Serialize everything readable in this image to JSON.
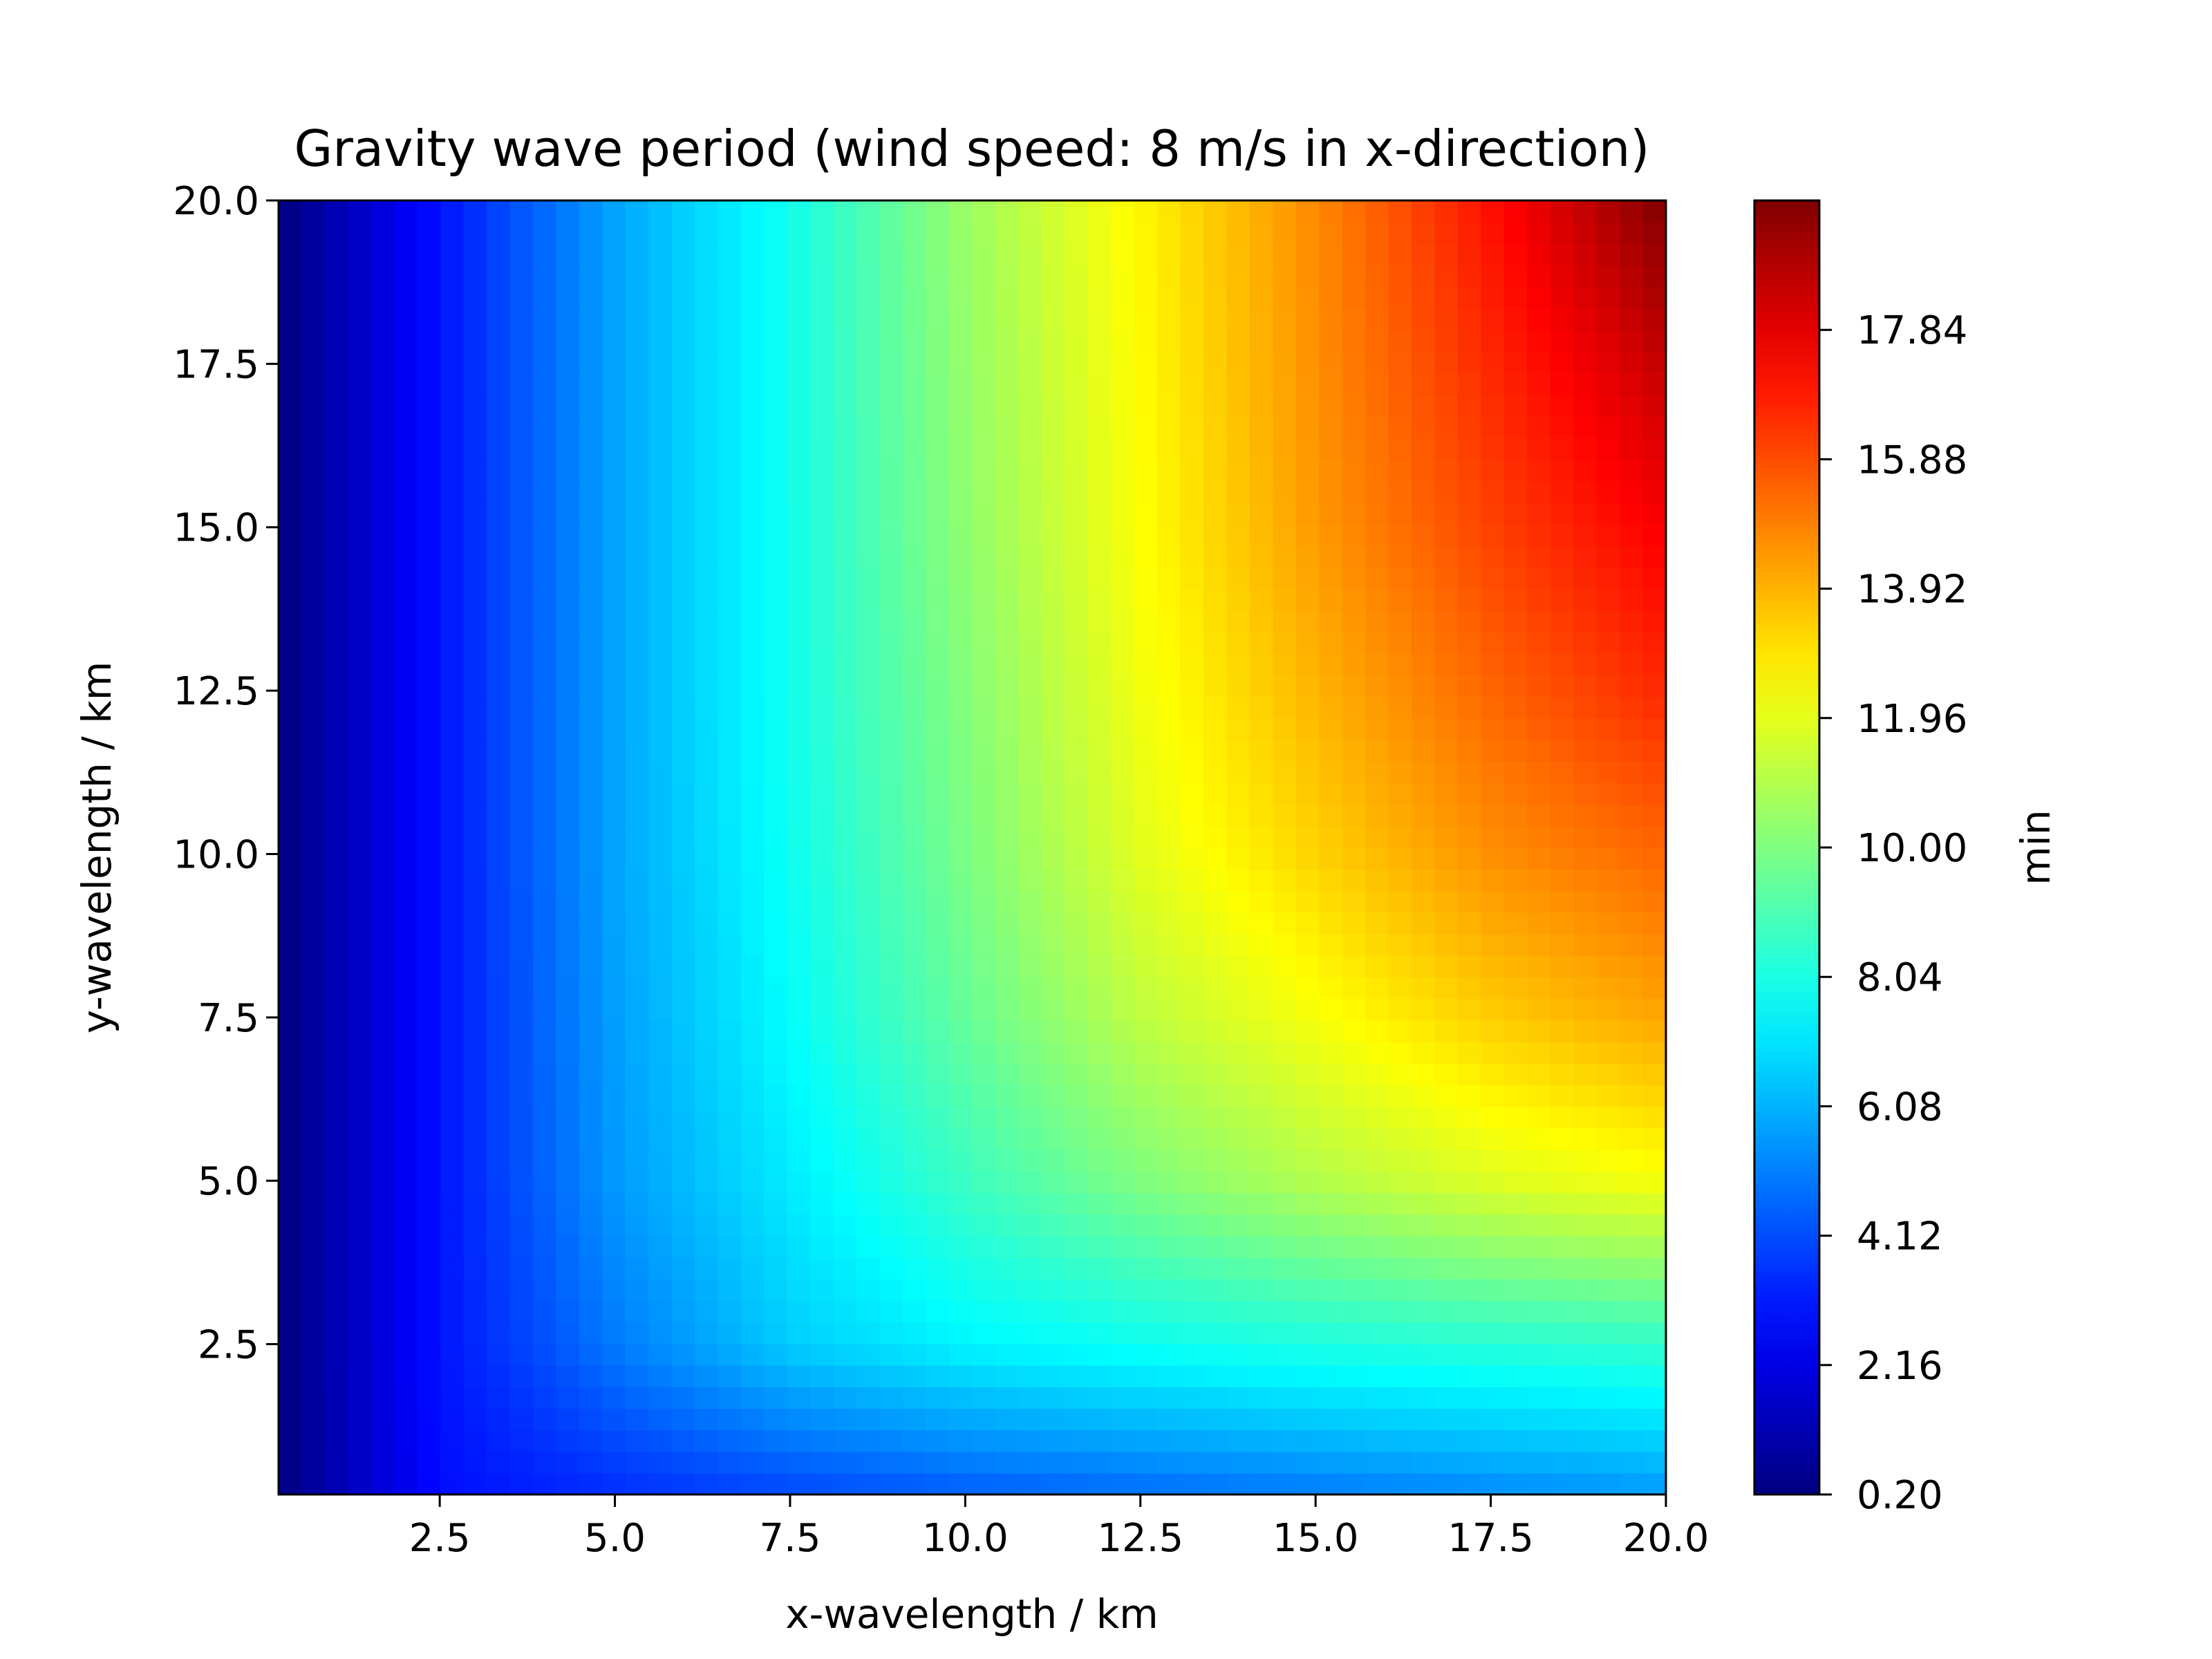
{
  "chart_data": {
    "type": "heatmap",
    "title": "Gravity wave period (wind speed: 8 m/s in x-direction)",
    "xlabel": "x-wavelength / km",
    "ylabel": "y-wavelength / km",
    "xlim": [
      0.2,
      20.0
    ],
    "ylim": [
      0.2,
      20.0
    ],
    "xticks": [
      2.5,
      5.0,
      7.5,
      10.0,
      12.5,
      15.0,
      17.5,
      20.0
    ],
    "xtick_labels": [
      "2.5",
      "5.0",
      "7.5",
      "10.0",
      "12.5",
      "15.0",
      "17.5",
      "20.0"
    ],
    "yticks": [
      2.5,
      5.0,
      7.5,
      10.0,
      12.5,
      15.0,
      17.5,
      20.0
    ],
    "ytick_labels": [
      "2.5",
      "5.0",
      "7.5",
      "10.0",
      "12.5",
      "15.0",
      "17.5",
      "20.0"
    ],
    "colormap": "jet",
    "colorbar": {
      "label": "min",
      "vmin": 0.2,
      "vmax": 19.8,
      "ticks": [
        0.2,
        2.16,
        4.12,
        6.08,
        8.04,
        10.0,
        11.96,
        13.92,
        15.88,
        17.84
      ],
      "tick_labels": [
        "0.20",
        "2.16",
        "4.12",
        "6.08",
        "8.04",
        "10.00",
        "11.96",
        "13.92",
        "15.88",
        "17.84"
      ]
    },
    "sample_grid": {
      "x": [
        0.2,
        2.5,
        5.0,
        7.5,
        10.0,
        12.5,
        15.0,
        17.5,
        20.0
      ],
      "y": [
        0.2,
        2.5,
        5.0,
        7.5,
        10.0,
        12.5,
        15.0,
        17.5,
        20.0
      ],
      "values": [
        [
          0.2,
          2.9,
          3.5,
          4.0,
          4.4,
          4.7,
          5.0,
          5.3,
          5.6
        ],
        [
          0.2,
          3.0,
          5.0,
          6.6,
          7.4,
          7.8,
          8.1,
          8.3,
          8.5
        ],
        [
          0.2,
          3.0,
          5.6,
          7.2,
          8.7,
          10.0,
          11.0,
          11.8,
          12.3
        ],
        [
          0.2,
          3.0,
          5.7,
          7.6,
          9.5,
          11.2,
          12.3,
          13.4,
          14.2
        ],
        [
          0.2,
          3.0,
          5.8,
          7.8,
          9.9,
          11.9,
          13.3,
          14.6,
          15.4
        ],
        [
          0.2,
          3.0,
          5.8,
          7.9,
          10.1,
          12.2,
          13.9,
          15.4,
          16.6
        ],
        [
          0.2,
          3.0,
          5.8,
          7.9,
          10.3,
          12.4,
          14.4,
          16.1,
          17.5
        ],
        [
          0.2,
          3.0,
          5.8,
          7.9,
          10.4,
          12.5,
          14.6,
          16.6,
          18.5
        ],
        [
          0.2,
          3.0,
          5.8,
          7.9,
          10.5,
          12.6,
          14.7,
          17.1,
          19.8
        ]
      ]
    },
    "grid": false
  }
}
